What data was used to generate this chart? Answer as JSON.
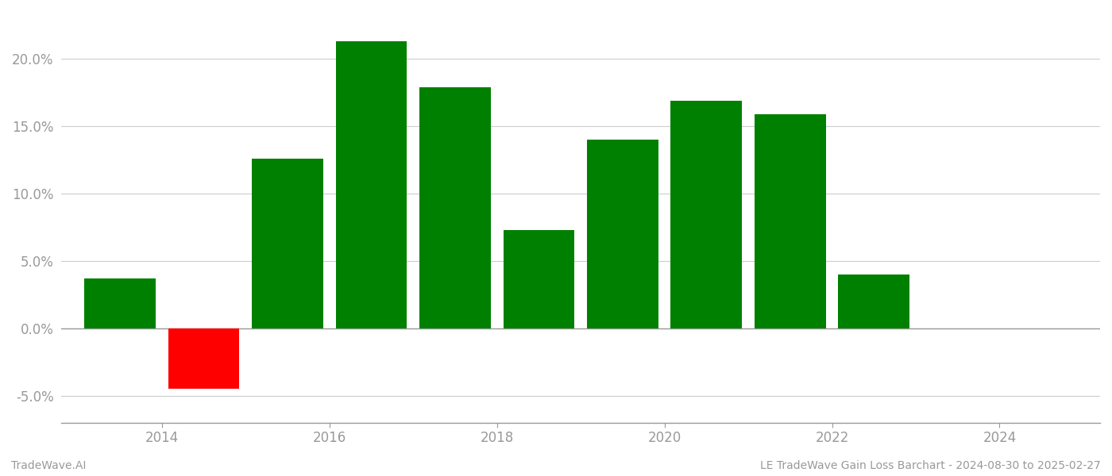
{
  "years": [
    2013.5,
    2014.5,
    2015.5,
    2016.5,
    2017.5,
    2018.5,
    2019.5,
    2020.5,
    2021.5,
    2022.5
  ],
  "values": [
    0.037,
    -0.045,
    0.126,
    0.213,
    0.179,
    0.073,
    0.14,
    0.169,
    0.159,
    0.04
  ],
  "bar_colors": [
    "#008000",
    "#ff0000",
    "#008000",
    "#008000",
    "#008000",
    "#008000",
    "#008000",
    "#008000",
    "#008000",
    "#008000"
  ],
  "ylim": [
    -0.07,
    0.235
  ],
  "yticks": [
    -0.05,
    0.0,
    0.05,
    0.1,
    0.15,
    0.2
  ],
  "xticks": [
    2014,
    2016,
    2018,
    2020,
    2022,
    2024
  ],
  "xlim": [
    2012.8,
    2025.2
  ],
  "bar_width": 0.85,
  "background_color": "#ffffff",
  "grid_color": "#cccccc",
  "footer_left": "TradeWave.AI",
  "footer_right": "LE TradeWave Gain Loss Barchart - 2024-08-30 to 2025-02-27",
  "footer_fontsize": 10,
  "tick_fontsize": 12,
  "tick_color": "#999999",
  "spine_color": "#999999",
  "grid_linewidth": 0.8
}
